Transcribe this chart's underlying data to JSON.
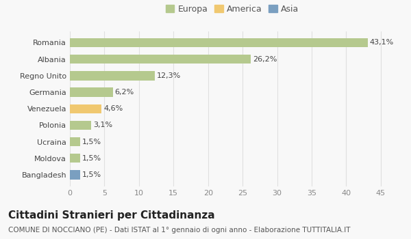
{
  "categories": [
    "Bangladesh",
    "Moldova",
    "Ucraina",
    "Polonia",
    "Venezuela",
    "Germania",
    "Regno Unito",
    "Albania",
    "Romania"
  ],
  "values": [
    1.5,
    1.5,
    1.5,
    3.1,
    4.6,
    6.2,
    12.3,
    26.2,
    43.1
  ],
  "colors": [
    "#7a9fc0",
    "#b5c98e",
    "#b5c98e",
    "#b5c98e",
    "#f0c870",
    "#b5c98e",
    "#b5c98e",
    "#b5c98e",
    "#b5c98e"
  ],
  "continents": [
    "Asia",
    "Europa",
    "Europa",
    "Europa",
    "America",
    "Europa",
    "Europa",
    "Europa",
    "Europa"
  ],
  "legend_labels": [
    "Europa",
    "America",
    "Asia"
  ],
  "legend_colors": [
    "#b5c98e",
    "#f0c870",
    "#7a9fc0"
  ],
  "title": "Cittadini Stranieri per Cittadinanza",
  "subtitle": "COMUNE DI NOCCIANO (PE) - Dati ISTAT al 1° gennaio di ogni anno - Elaborazione TUTTITALIA.IT",
  "xlim": [
    0,
    47
  ],
  "xticks": [
    0,
    5,
    10,
    15,
    20,
    25,
    30,
    35,
    40,
    45
  ],
  "background_color": "#f8f8f8",
  "grid_color": "#e0e0e0",
  "bar_height": 0.55,
  "label_fontsize": 8,
  "title_fontsize": 11,
  "subtitle_fontsize": 7.5,
  "tick_fontsize": 8,
  "legend_fontsize": 9
}
